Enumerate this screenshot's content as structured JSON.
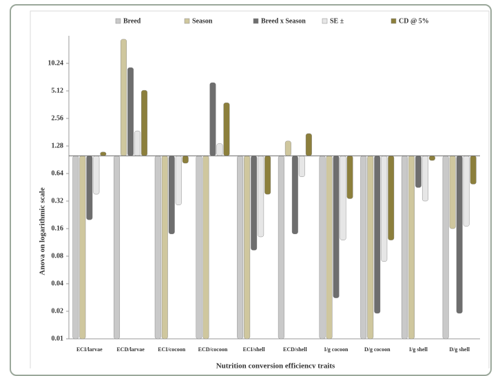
{
  "chart_data": {
    "type": "bar",
    "log_scale": true,
    "y_label": "Anova on logarithmic scale",
    "x_label": "Nutrition conversion efficiency traits",
    "categories": [
      "ECI/larvae",
      "ECD/larvae",
      "ECI/cocoon",
      "ECD/cocoon",
      "ECI/shell",
      "ECD/shell",
      "I/g cocoon",
      "D/g cocoon",
      "I/g shell",
      "D/g shell"
    ],
    "series": [
      {
        "name": "Breed",
        "color": "#c9c9c9",
        "values": [
          0.01,
          0.01,
          0.01,
          0.01,
          0.01,
          0.01,
          0.01,
          0.01,
          0.01,
          0.01
        ]
      },
      {
        "name": "Season",
        "color": "#cfc79e",
        "values": [
          0.01,
          18.8,
          0.01,
          0.01,
          0.01,
          1.45,
          0.01,
          0.01,
          0.01,
          0.16
        ]
      },
      {
        "name": "Breed x Season",
        "color": "#6e6e6e",
        "values": [
          0.2,
          9.2,
          0.14,
          6.3,
          0.093,
          0.14,
          0.028,
          0.019,
          0.45,
          0.019
        ]
      },
      {
        "name": "SE ±",
        "color": "#e6e6e6",
        "values": [
          0.38,
          1.87,
          0.29,
          1.36,
          0.13,
          0.59,
          0.12,
          0.07,
          0.32,
          0.17
        ]
      },
      {
        "name": "CD @ 5%",
        "color": "#8c7f3c",
        "values": [
          1.1,
          5.2,
          0.83,
          3.8,
          0.38,
          1.75,
          0.34,
          0.12,
          0.89,
          0.49
        ]
      }
    ],
    "ylim": [
      0.01,
      20.48
    ],
    "yticks": [
      0.01,
      0.02,
      0.04,
      0.08,
      0.16,
      0.32,
      0.64,
      1.28,
      2.56,
      5.12,
      10.24
    ]
  }
}
